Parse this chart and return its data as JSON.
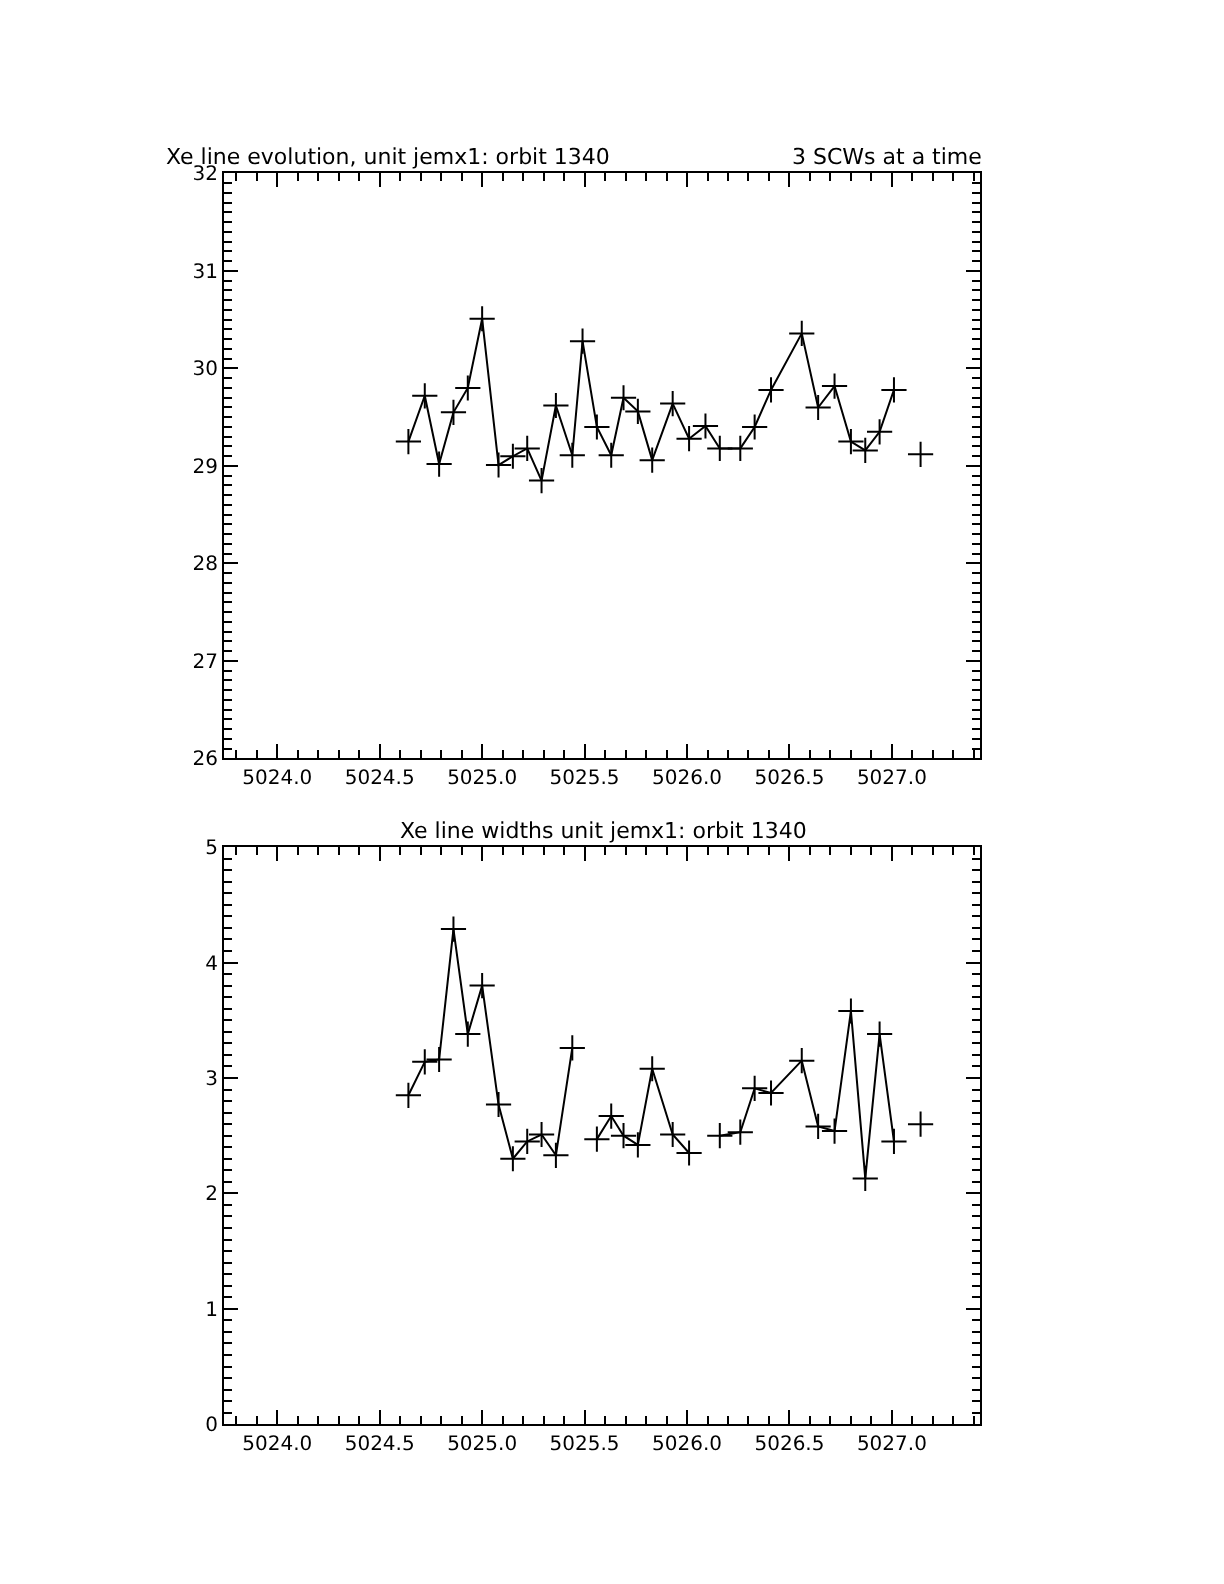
{
  "chart_data": [
    {
      "type": "line",
      "title": "Xe line evolution, unit jemx1: orbit 1340",
      "subtitle": "3 SCWs at a time",
      "color": "#000000",
      "marker": "cross",
      "line_style": "solid",
      "x": [
        5024.64,
        5024.72,
        5024.79,
        5024.86,
        5024.93,
        5025.0,
        5025.08,
        5025.15,
        5025.22,
        5025.29,
        5025.36,
        5025.44,
        5025.49,
        5025.56,
        5025.63,
        5025.69,
        5025.76,
        5025.83,
        5025.93,
        5026.01,
        5026.09,
        5026.16,
        5026.26,
        5026.33,
        5026.41,
        5026.56,
        5026.64,
        5026.72,
        5026.8,
        5026.87,
        5026.94,
        5027.01,
        5027.08,
        5027.14
      ],
      "values": [
        29.25,
        29.72,
        29.02,
        29.55,
        29.8,
        30.51,
        29.01,
        29.1,
        29.18,
        28.85,
        29.62,
        29.11,
        30.28,
        29.4,
        29.11,
        29.7,
        29.56,
        29.06,
        29.64,
        29.28,
        29.41,
        29.18,
        29.18,
        29.4,
        29.78,
        30.36,
        29.6,
        29.82,
        29.25,
        29.16,
        29.35,
        29.78,
        null,
        29.12
      ],
      "xlim": [
        5023.74,
        5027.43
      ],
      "xticks": [
        {
          "value": 5024.0,
          "label": "5024.0"
        },
        {
          "value": 5024.5,
          "label": "5024.5"
        },
        {
          "value": 5025.0,
          "label": "5025.0"
        },
        {
          "value": 5025.5,
          "label": "5025.5"
        },
        {
          "value": 5026.0,
          "label": "5026.0"
        },
        {
          "value": 5026.5,
          "label": "5026.5"
        },
        {
          "value": 5027.0,
          "label": "5027.0"
        }
      ],
      "ylim": [
        26,
        32
      ],
      "yticks": [
        26,
        27,
        28,
        29,
        30,
        31,
        32
      ]
    },
    {
      "type": "line",
      "title": "Xe line widths unit jemx1: orbit 1340",
      "color": "#000000",
      "marker": "cross",
      "line_style": "solid",
      "x": [
        5024.64,
        5024.72,
        5024.79,
        5024.86,
        5024.93,
        5025.0,
        5025.08,
        5025.15,
        5025.22,
        5025.29,
        5025.36,
        5025.44,
        5025.49,
        5025.56,
        5025.63,
        5025.69,
        5025.76,
        5025.83,
        5025.93,
        5026.01,
        5026.09,
        5026.16,
        5026.26,
        5026.33,
        5026.41,
        5026.56,
        5026.64,
        5026.72,
        5026.8,
        5026.87,
        5026.94,
        5027.01,
        5027.08,
        5027.14
      ],
      "values": [
        2.85,
        3.14,
        3.16,
        4.29,
        3.38,
        3.8,
        2.77,
        2.3,
        2.45,
        2.51,
        2.33,
        3.26,
        null,
        2.47,
        2.67,
        2.5,
        2.42,
        3.08,
        2.51,
        2.35,
        null,
        2.5,
        2.53,
        2.91,
        2.87,
        3.15,
        2.58,
        2.54,
        3.58,
        2.13,
        3.38,
        2.45,
        null,
        2.6
      ],
      "xlim": [
        5023.74,
        5027.43
      ],
      "xticks": [
        {
          "value": 5024.0,
          "label": "5024.0"
        },
        {
          "value": 5024.5,
          "label": "5024.5"
        },
        {
          "value": 5025.0,
          "label": "5025.0"
        },
        {
          "value": 5025.5,
          "label": "5025.5"
        },
        {
          "value": 5026.0,
          "label": "5026.0"
        },
        {
          "value": 5026.5,
          "label": "5026.5"
        },
        {
          "value": 5027.0,
          "label": "5027.0"
        }
      ],
      "ylim": [
        0,
        5
      ],
      "yticks": [
        0,
        1,
        2,
        3,
        4,
        5
      ]
    }
  ]
}
